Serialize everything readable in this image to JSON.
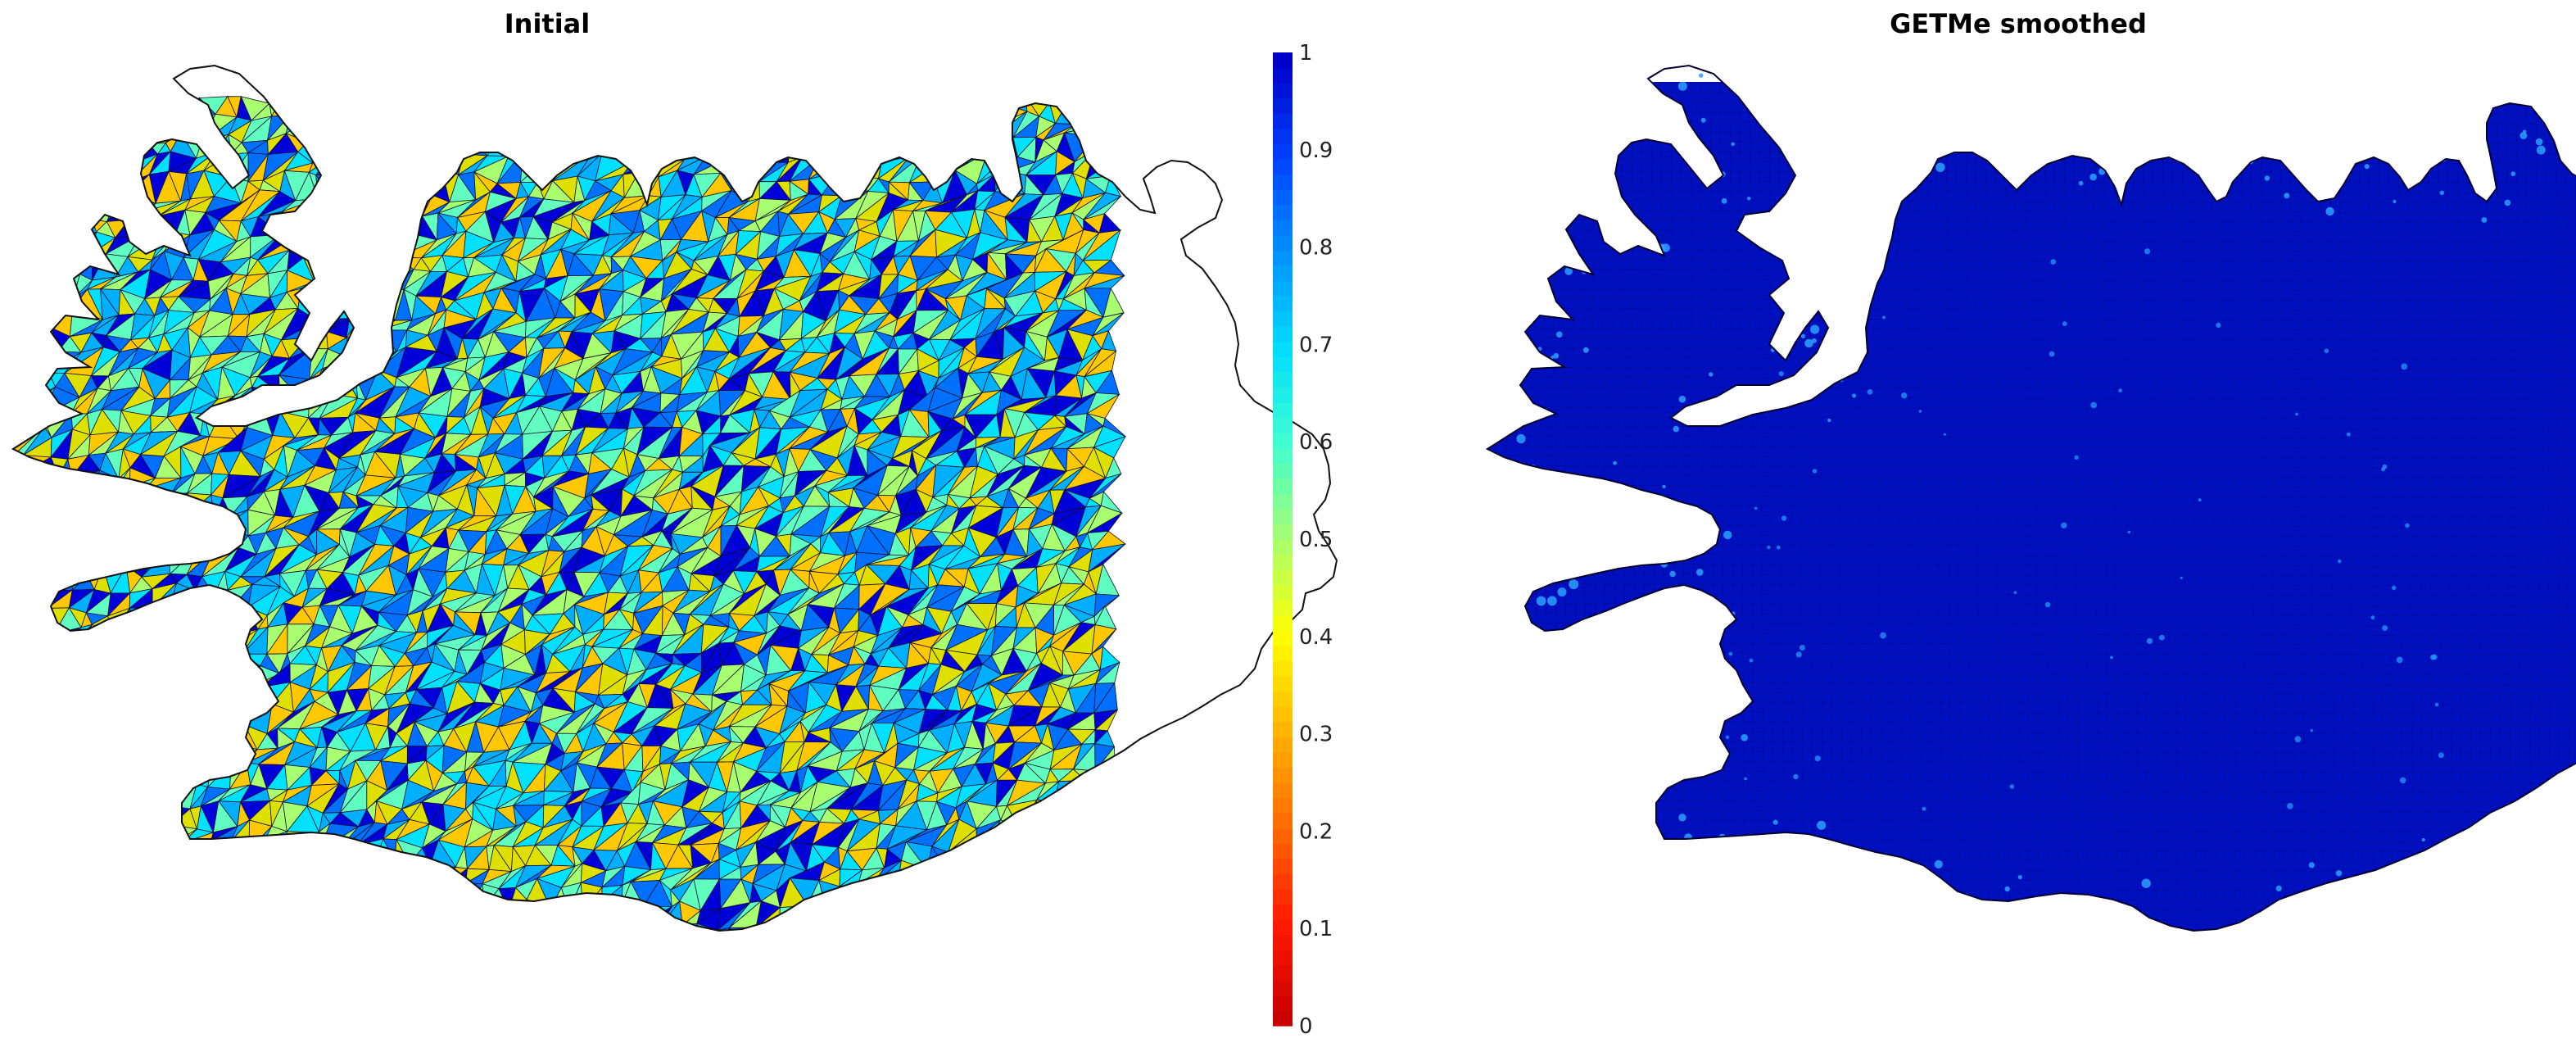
{
  "figure": {
    "panels": [
      {
        "title": "Initial",
        "state": "initial"
      },
      {
        "title": "GETMe smoothed",
        "state": "smoothed"
      }
    ],
    "colorbar": {
      "min": 0,
      "max": 1,
      "ticks": [
        "0",
        "0.1",
        "0.2",
        "0.3",
        "0.4",
        "0.5",
        "0.6",
        "0.7",
        "0.8",
        "0.9",
        "1"
      ],
      "colormap": "jet",
      "colors": [
        "#c80000",
        "#ff1a00",
        "#ff6a00",
        "#ffb400",
        "#ffff00",
        "#a8ff70",
        "#40ffd0",
        "#00dcff",
        "#0090ff",
        "#0040ff",
        "#0000c8"
      ]
    },
    "mesh_colors": {
      "initial_palette": [
        "#00e0ff",
        "#00b0ff",
        "#0070ff",
        "#0000d8",
        "#e0e000",
        "#a8ff70",
        "#60ffc0",
        "#ffc800"
      ],
      "smoothed_fill": "#0010c0",
      "smoothed_spots": "#2aa0ff",
      "edge": "#101030"
    }
  }
}
